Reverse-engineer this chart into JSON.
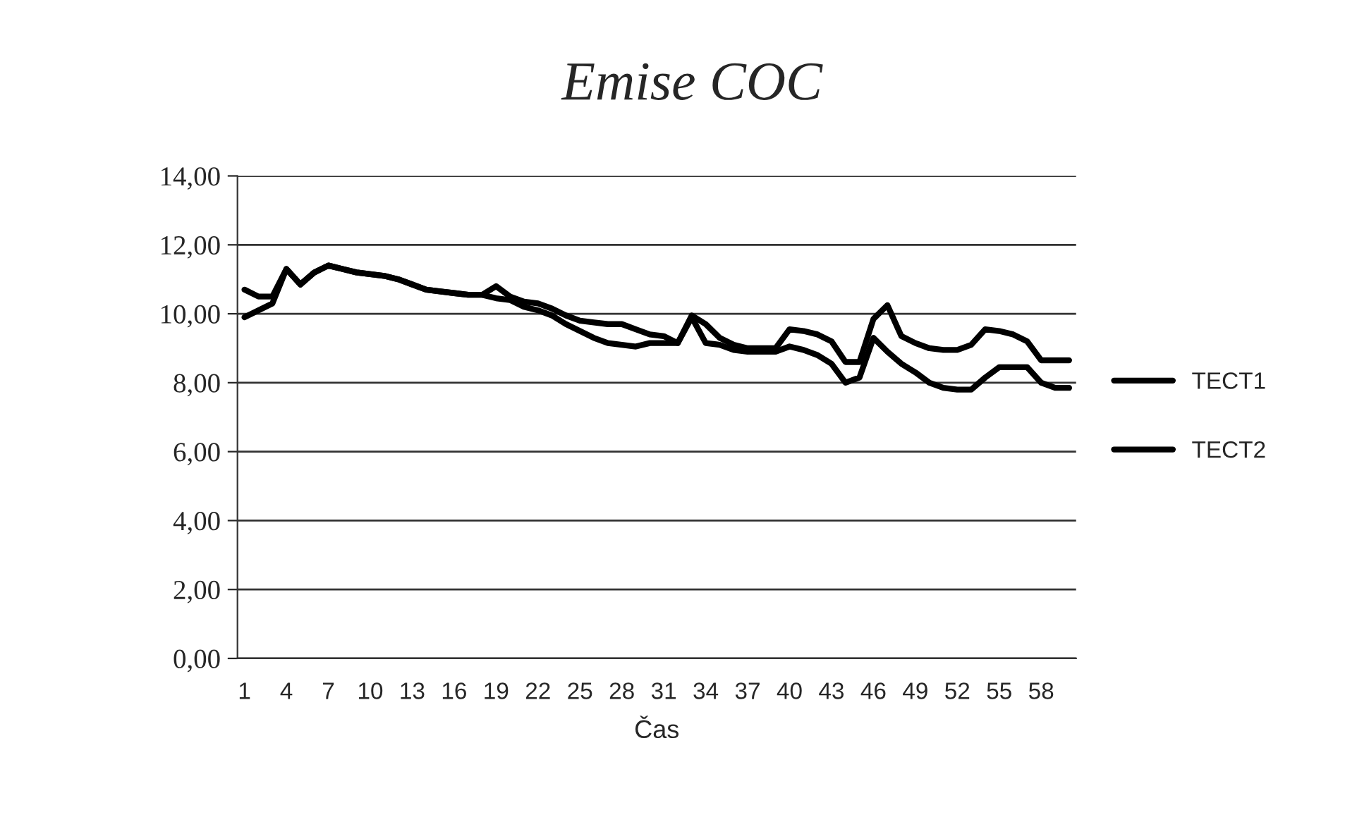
{
  "chart_data": {
    "type": "line",
    "title": "Emise COC",
    "xlabel": "Čas",
    "categories": [
      "1",
      null,
      null,
      "4",
      null,
      null,
      "7",
      null,
      null,
      "10",
      null,
      null,
      "13",
      null,
      null,
      "16",
      null,
      null,
      "19",
      null,
      null,
      "22",
      null,
      null,
      "25",
      null,
      null,
      "28",
      null,
      null,
      "31",
      null,
      null,
      "34",
      null,
      null,
      "37",
      null,
      null,
      "40",
      null,
      null,
      "43",
      null,
      null,
      "46",
      null,
      null,
      "49",
      null,
      null,
      "52",
      null,
      null,
      "55",
      null,
      null,
      "58",
      null,
      null
    ],
    "series": [
      {
        "name": "TECT1",
        "color": "#000000",
        "values": [
          10.7,
          10.5,
          10.5,
          11.3,
          10.85,
          11.2,
          11.4,
          11.3,
          11.2,
          11.15,
          11.1,
          11.0,
          10.85,
          10.7,
          10.65,
          10.6,
          10.55,
          10.55,
          10.8,
          10.5,
          10.35,
          10.3,
          10.15,
          9.95,
          9.8,
          9.75,
          9.7,
          9.7,
          9.55,
          9.4,
          9.35,
          9.15,
          9.95,
          9.7,
          9.3,
          9.1,
          9.0,
          9.0,
          9.0,
          9.55,
          9.5,
          9.4,
          9.2,
          8.6,
          8.6,
          9.85,
          10.25,
          9.35,
          9.15,
          9.0,
          8.95,
          8.95,
          9.1,
          9.55,
          9.5,
          9.4,
          9.2,
          8.65,
          8.65,
          8.65
        ]
      },
      {
        "name": "TECT2",
        "color": "#000000",
        "values": [
          9.9,
          10.1,
          10.3,
          11.3,
          10.85,
          11.2,
          11.4,
          11.3,
          11.2,
          11.15,
          11.1,
          11.0,
          10.85,
          10.7,
          10.65,
          10.6,
          10.55,
          10.55,
          10.45,
          10.4,
          10.2,
          10.1,
          9.95,
          9.7,
          9.5,
          9.3,
          9.15,
          9.1,
          9.05,
          9.15,
          9.15,
          9.15,
          9.9,
          9.15,
          9.1,
          8.95,
          8.9,
          8.9,
          8.9,
          9.05,
          8.95,
          8.8,
          8.55,
          8.0,
          8.15,
          9.3,
          8.9,
          8.55,
          8.3,
          8.0,
          7.85,
          7.8,
          7.8,
          8.15,
          8.45,
          8.45,
          8.45,
          8.0,
          7.85,
          7.85
        ]
      }
    ],
    "ylim": [
      0,
      14
    ],
    "yticks": [
      {
        "value": 0,
        "label": "0,00"
      },
      {
        "value": 2,
        "label": "2,00"
      },
      {
        "value": 4,
        "label": "4,00"
      },
      {
        "value": 6,
        "label": "6,00"
      },
      {
        "value": 8,
        "label": "8,00"
      },
      {
        "value": 10,
        "label": "10,00"
      },
      {
        "value": 12,
        "label": "12,00"
      },
      {
        "value": 14,
        "label": "14,00"
      }
    ],
    "grid": "y",
    "legend": "right",
    "marker": "none",
    "line_style": "solid"
  }
}
